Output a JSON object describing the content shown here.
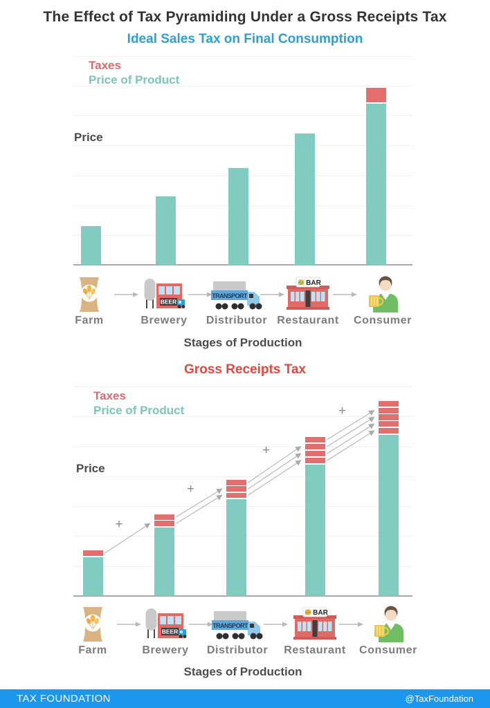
{
  "title": "The Effect of Tax Pyramiding Under a Gross Receipts Tax",
  "footer": {
    "brand": "TAX FOUNDATION",
    "handle": "@TaxFoundation"
  },
  "stages": {
    "caption": "Stages of Production",
    "items": [
      {
        "label": "Farm",
        "icon": "farm-sack-icon"
      },
      {
        "label": "Brewery",
        "icon": "brewery-building-icon"
      },
      {
        "label": "Distributor",
        "icon": "transport-truck-icon"
      },
      {
        "label": "Restaurant",
        "icon": "restaurant-bar-icon"
      },
      {
        "label": "Consumer",
        "icon": "consumer-person-icon"
      }
    ],
    "icon_texts": {
      "brewery_sign": "BEER",
      "truck_banner": "TRANSPORT",
      "restaurant_sign": "BAR"
    }
  },
  "colors": {
    "price_teal": "#82CBC1",
    "tax_red": "#E26F6D",
    "subtitle_blue": "#2D9FD9",
    "grt_title_red": "#E8453C",
    "footer_blue": "#1B97EE",
    "title_dark": "#333333",
    "grid_gray": "#F0F0F0",
    "axis_gray": "#A8A8A8",
    "stage_label_gray": "#7C7C7C",
    "arrow_gray": "#B8B8B8",
    "plus_gray": "#8A8A8A"
  },
  "chart_data": [
    {
      "type": "bar",
      "stacked": true,
      "title": "Ideal Sales Tax on Final Consumption",
      "categories": [
        "Farm",
        "Brewery",
        "Distributor",
        "Restaurant",
        "Consumer"
      ],
      "series": [
        {
          "name": "Price of Product",
          "color": "#82CBC1",
          "values": [
            1.3,
            2.3,
            3.25,
            4.4,
            5.4
          ]
        },
        {
          "name": "Taxes",
          "color": "#E26F6D",
          "values": [
            0,
            0,
            0,
            0,
            0.5
          ],
          "segments": [
            0,
            0,
            0,
            0,
            1
          ]
        }
      ],
      "ylabel": "Price",
      "xlabel": "Stages of Production",
      "ylim": [
        0,
        7
      ],
      "grid": true,
      "legend_position": "top-left-inside",
      "axis_tick_labels": "none (conceptual price units, 1 unit per gridline)"
    },
    {
      "type": "bar",
      "stacked": true,
      "title": "Gross Receipts Tax",
      "categories": [
        "Farm",
        "Brewery",
        "Distributor",
        "Restaurant",
        "Consumer"
      ],
      "series": [
        {
          "name": "Price of Product",
          "color": "#82CBC1",
          "values": [
            1.3,
            2.3,
            3.25,
            4.4,
            5.4
          ]
        },
        {
          "name": "Taxes",
          "color": "#E26F6D",
          "values": [
            0.2,
            0.4,
            0.6,
            0.9,
            1.1
          ],
          "segments": [
            1,
            2,
            3,
            4,
            5
          ]
        }
      ],
      "ylabel": "Price",
      "xlabel": "Stages of Production",
      "ylim": [
        0,
        7
      ],
      "grid": true,
      "legend_position": "top-left-inside",
      "axis_tick_labels": "none (conceptual price units, 1 unit per gridline)",
      "annotations": {
        "plus_sign": "+",
        "plus_sign_count": 4,
        "arrow_fans_between_stages": [
          1,
          2,
          3,
          4
        ],
        "meaning": "taxes paid at each stage are carried forward and stack at later stages (tax pyramiding)"
      }
    }
  ]
}
